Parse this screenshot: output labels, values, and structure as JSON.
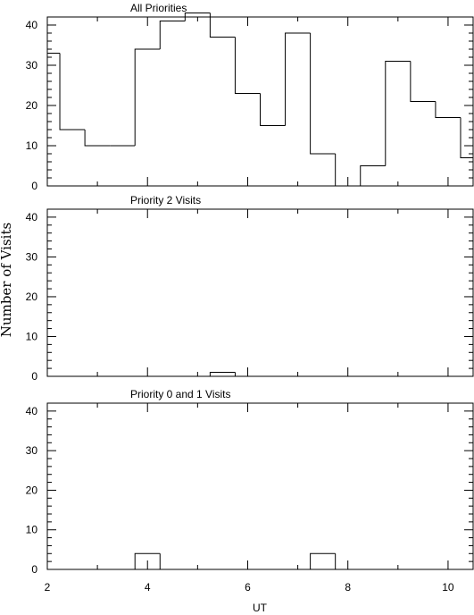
{
  "chart_data": {
    "type": "histogram",
    "xlabel": "UT",
    "ylabel": "Number of Visits",
    "xlim": [
      2,
      10.5
    ],
    "ylim": [
      0,
      42
    ],
    "bin_width": 0.5,
    "bin_starts": [
      2.0,
      2.25,
      2.75,
      3.25,
      3.75,
      4.25,
      4.75,
      5.25,
      5.75,
      6.25,
      6.75,
      7.25,
      7.75,
      8.25,
      8.75,
      9.25,
      9.75,
      10.25
    ],
    "x_ticks": [
      2,
      4,
      6,
      8,
      10
    ],
    "x_tick_labels": [
      "2",
      "4",
      "6",
      "8",
      "10"
    ],
    "x_minor_step": 1,
    "y_ticks": [
      0,
      10,
      20,
      30,
      40
    ],
    "y_tick_labels": [
      "0",
      "10",
      "20",
      "30",
      "40"
    ],
    "y_minor_step": 2,
    "panels": [
      {
        "title": "All Priorities",
        "values": [
          33,
          14,
          10,
          10,
          34,
          41,
          43,
          37,
          23,
          15,
          38,
          8,
          0,
          5,
          31,
          21,
          17,
          7
        ]
      },
      {
        "title": "Priority 2 Visits",
        "values": [
          0,
          0,
          0,
          0,
          0,
          0,
          0,
          1,
          0,
          0,
          0,
          0,
          0,
          0,
          0,
          0,
          0,
          0
        ]
      },
      {
        "title": "Priority 0 and 1 Visits",
        "values": [
          0,
          0,
          0,
          0,
          4,
          0,
          0,
          0,
          0,
          0,
          0,
          4,
          0,
          0,
          0,
          0,
          0,
          0
        ]
      }
    ]
  }
}
